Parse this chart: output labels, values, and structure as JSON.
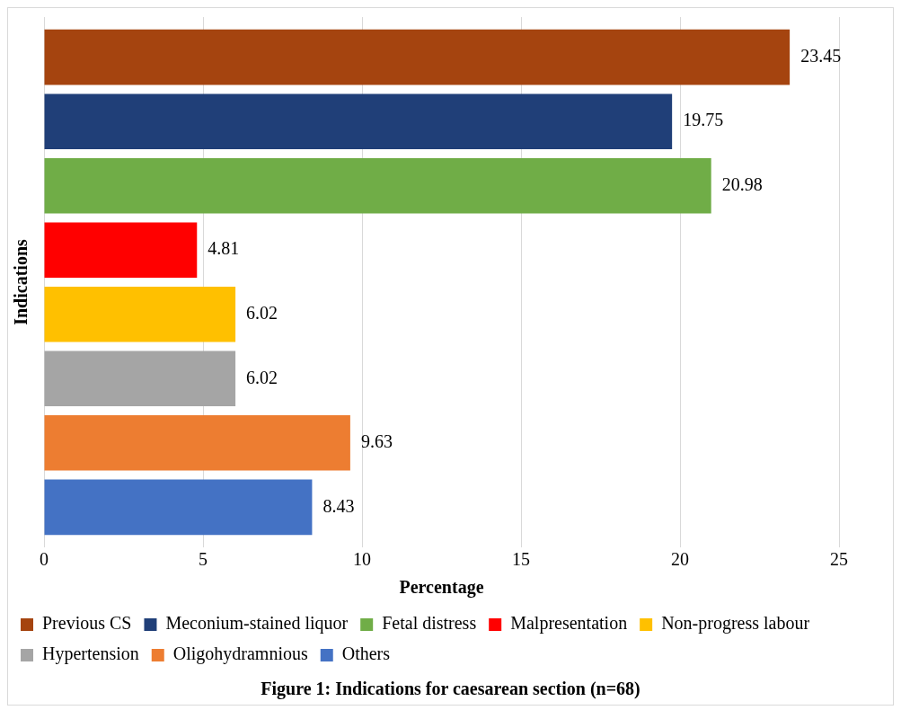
{
  "chart_data": {
    "type": "bar",
    "orientation": "horizontal",
    "categories": [
      null
    ],
    "series": [
      {
        "name": "Previous CS",
        "color": "#a5440f",
        "values": [
          23.45
        ]
      },
      {
        "name": "Meconium-stained liquor",
        "color": "#203f78",
        "values": [
          19.75
        ]
      },
      {
        "name": "Fetal distress",
        "color": "#70ad47",
        "values": [
          20.98
        ]
      },
      {
        "name": "Malpresentation",
        "color": "#ff0000",
        "values": [
          4.81
        ]
      },
      {
        "name": "Non-progress labour",
        "color": "#ffc000",
        "values": [
          6.02
        ]
      },
      {
        "name": "Hypertension",
        "color": "#a5a5a5",
        "values": [
          6.02
        ]
      },
      {
        "name": "Oligohydramnious",
        "color": "#ed7d31",
        "values": [
          9.63
        ]
      },
      {
        "name": "Others",
        "color": "#4472c4",
        "values": [
          8.43
        ]
      }
    ],
    "xlim": [
      0,
      25
    ],
    "xticks": [
      0,
      5,
      10,
      15,
      20,
      25
    ],
    "xlabel": "Percentage",
    "ylabel": "Indications",
    "grid": "x",
    "legend": "bottom",
    "data_labels": true,
    "annotations": [
      "Figure 1: Indications for caesarean section (n=68)"
    ]
  }
}
